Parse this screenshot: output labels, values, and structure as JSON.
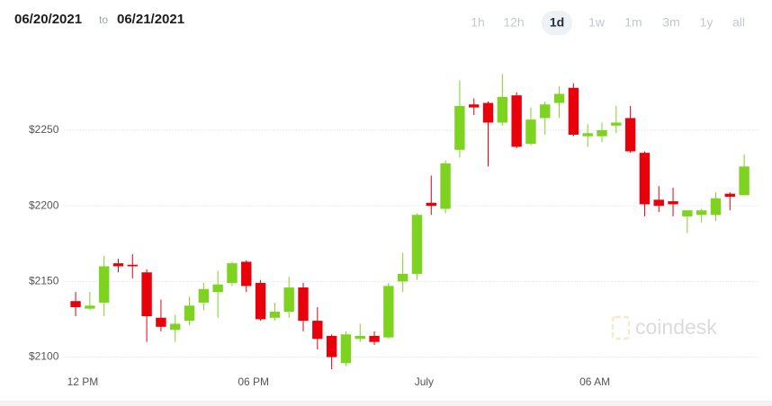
{
  "header": {
    "from": "06/20/2021",
    "separator": "to",
    "to": "06/21/2021"
  },
  "ranges": {
    "options": [
      "1h",
      "12h",
      "1d",
      "1w",
      "1m",
      "3m",
      "1y",
      "all"
    ],
    "selected": "1d"
  },
  "watermark": "coindesk",
  "chart_data": {
    "type": "candlestick",
    "x": [
      0,
      1,
      2,
      3,
      4,
      5,
      6,
      7,
      8,
      9,
      10,
      11,
      12,
      13,
      14,
      15,
      16,
      17,
      18,
      19,
      20,
      21,
      22,
      23,
      24,
      25,
      26,
      27,
      28,
      29,
      30,
      31,
      32,
      33,
      34,
      35,
      36,
      37,
      38,
      39,
      40,
      41,
      42,
      43,
      44,
      45,
      46,
      47
    ],
    "open": [
      2137,
      2132,
      2136,
      2162,
      2161,
      2156,
      2126,
      2118,
      2124,
      2136,
      2143,
      2149,
      2163,
      2149,
      2126,
      2130,
      2146,
      2124,
      2114,
      2096,
      2112,
      2114,
      2113,
      2150,
      2155,
      2202,
      2198,
      2237,
      2267,
      2268,
      2255,
      2273,
      2241,
      2258,
      2268,
      2278,
      2246,
      2246,
      2253,
      2258,
      2235,
      2204,
      2203,
      2193,
      2194,
      2194,
      2208,
      2207
    ],
    "high": [
      2143,
      2143,
      2167,
      2165,
      2168,
      2158,
      2138,
      2128,
      2140,
      2149,
      2157,
      2163,
      2164,
      2151,
      2136,
      2153,
      2149,
      2133,
      2115,
      2117,
      2122,
      2117,
      2149,
      2169,
      2195,
      2220,
      2230,
      2283,
      2271,
      2269,
      2287,
      2275,
      2265,
      2269,
      2279,
      2281,
      2254,
      2255,
      2266,
      2266,
      2236,
      2213,
      2212,
      2197,
      2198,
      2209,
      2209,
      2234
    ],
    "low": [
      2127,
      2131,
      2127,
      2156,
      2152,
      2110,
      2117,
      2110,
      2121,
      2131,
      2126,
      2147,
      2143,
      2124,
      2124,
      2126,
      2117,
      2105,
      2092,
      2094,
      2110,
      2108,
      2112,
      2143,
      2151,
      2194,
      2195,
      2232,
      2260,
      2226,
      2253,
      2238,
      2240,
      2247,
      2258,
      2246,
      2239,
      2242,
      2248,
      2235,
      2193,
      2196,
      2193,
      2182,
      2189,
      2190,
      2197,
      2207
    ],
    "close": [
      2133,
      2134,
      2160,
      2160,
      2160,
      2127,
      2120,
      2122,
      2134,
      2145,
      2148,
      2162,
      2147,
      2125,
      2130,
      2146,
      2124,
      2112,
      2100,
      2115,
      2114,
      2110,
      2147,
      2155,
      2194,
      2200,
      2228,
      2266,
      2265,
      2255,
      2272,
      2239,
      2257,
      2267,
      2274,
      2247,
      2248,
      2250,
      2255,
      2236,
      2201,
      2200,
      2201,
      2197,
      2197,
      2205,
      2206,
      2226
    ],
    "up_color": "#7ed321",
    "down_color": "#e8000b",
    "xlim": [
      -0.8,
      48
    ],
    "xticks": [
      {
        "value": 0.5,
        "label": "12 PM"
      },
      {
        "value": 12.5,
        "label": "06 PM"
      },
      {
        "value": 24.5,
        "label": "July"
      },
      {
        "value": 36.5,
        "label": "06 AM"
      }
    ],
    "ylim": [
      2092,
      2300
    ],
    "yticks": [
      {
        "value": 2100,
        "label": "$2100"
      },
      {
        "value": 2150,
        "label": "$2150"
      },
      {
        "value": 2200,
        "label": "$2200"
      },
      {
        "value": 2250,
        "label": "$2250"
      }
    ],
    "grid": true
  }
}
